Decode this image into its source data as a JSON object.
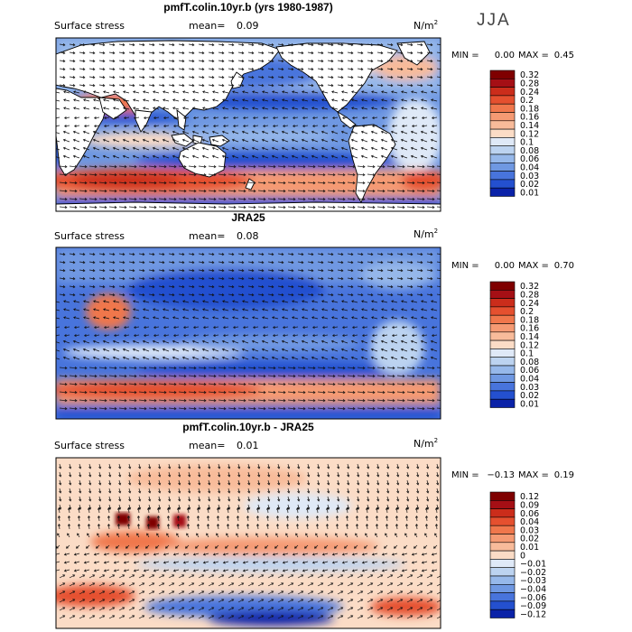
{
  "season": "JJA",
  "panels": [
    {
      "title": "pmfT.colin.10yr.b (yrs 1980-1987)",
      "left_label": "Surface stress",
      "mean_label": "mean=",
      "mean_value": "0.09",
      "units": "N/m",
      "units_exp": "2",
      "min_label": "MIN =",
      "min_value": "0.00",
      "max_label": "MAX =",
      "max_value": "0.45",
      "colorbar": [
        "0.32",
        "0.28",
        "0.24",
        "0.2",
        "0.18",
        "0.16",
        "0.14",
        "0.12",
        "0.1",
        "0.08",
        "0.06",
        "0.04",
        "0.03",
        "0.02",
        "0.01"
      ]
    },
    {
      "title": "JRA25",
      "left_label": "Surface stress",
      "mean_label": "mean=",
      "mean_value": "0.08",
      "units": "N/m",
      "units_exp": "2",
      "min_label": "MIN =",
      "min_value": "0.00",
      "max_label": "MAX =",
      "max_value": "0.70",
      "colorbar": [
        "0.32",
        "0.28",
        "0.24",
        "0.2",
        "0.18",
        "0.16",
        "0.14",
        "0.12",
        "0.1",
        "0.08",
        "0.06",
        "0.04",
        "0.03",
        "0.02",
        "0.01"
      ]
    },
    {
      "title": "pmfT.colin.10yr.b - JRA25",
      "left_label": "Surface stress",
      "mean_label": "mean=",
      "mean_value": "0.01",
      "units": "N/m",
      "units_exp": "2",
      "min_label": "MIN =",
      "min_value": "−0.13",
      "max_label": "MAX =",
      "max_value": "0.19",
      "colorbar": [
        "0.12",
        "0.09",
        "0.06",
        "0.04",
        "0.03",
        "0.02",
        "0.01",
        "0",
        "−0.01",
        "−0.02",
        "−0.03",
        "−0.04",
        "−0.06",
        "−0.09",
        "−0.12"
      ]
    }
  ],
  "colors": {
    "scale": [
      "#7f0000",
      "#a50f15",
      "#cb2d1b",
      "#e5502f",
      "#f0774c",
      "#f59a73",
      "#f8bb9a",
      "#fbdcc6",
      "#dfe9f7",
      "#bcd3f0",
      "#96b8ea",
      "#6f98e2",
      "#4874dc",
      "#2450cf",
      "#0a22a8"
    ],
    "land": "#ffffff",
    "arrow": "#111111"
  },
  "chart_data": [
    {
      "type": "heatmap",
      "title": "pmfT.colin.10yr.b (yrs 1980-1987)",
      "variable": "Surface stress",
      "units": "N/m^2",
      "season": "JJA",
      "mean": 0.09,
      "min": 0.0,
      "max": 0.45,
      "contour_levels": [
        0.01,
        0.02,
        0.03,
        0.04,
        0.06,
        0.08,
        0.1,
        0.12,
        0.14,
        0.16,
        0.18,
        0.2,
        0.24,
        0.28,
        0.32
      ],
      "overlay": "wind stress vectors"
    },
    {
      "type": "heatmap",
      "title": "JRA25",
      "variable": "Surface stress",
      "units": "N/m^2",
      "season": "JJA",
      "mean": 0.08,
      "min": 0.0,
      "max": 0.7,
      "contour_levels": [
        0.01,
        0.02,
        0.03,
        0.04,
        0.06,
        0.08,
        0.1,
        0.12,
        0.14,
        0.16,
        0.18,
        0.2,
        0.24,
        0.28,
        0.32
      ],
      "overlay": "wind stress vectors"
    },
    {
      "type": "heatmap",
      "title": "pmfT.colin.10yr.b - JRA25",
      "variable": "Surface stress",
      "units": "N/m^2",
      "season": "JJA",
      "mean": 0.01,
      "min": -0.13,
      "max": 0.19,
      "contour_levels": [
        -0.12,
        -0.09,
        -0.06,
        -0.04,
        -0.03,
        -0.02,
        -0.01,
        0,
        0.01,
        0.02,
        0.03,
        0.04,
        0.06,
        0.09,
        0.12
      ],
      "overlay": "wind stress difference vectors"
    }
  ]
}
